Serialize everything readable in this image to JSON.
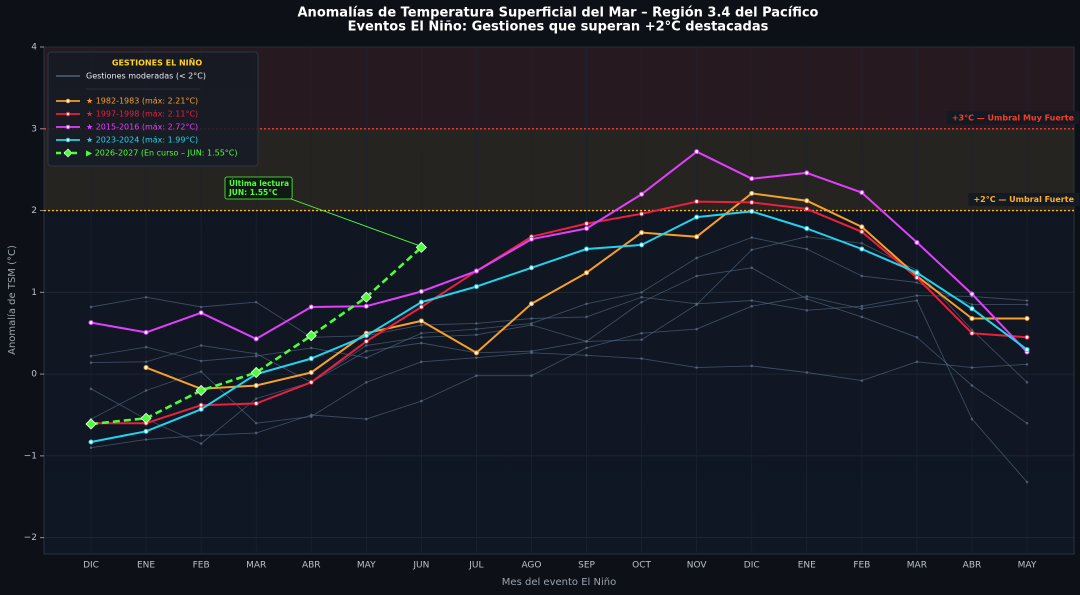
{
  "chart_data": {
    "type": "line",
    "title": "Anomalías de Temperatura Superficial del Mar – Región 3.4 del Pacífico",
    "subtitle": "Eventos El Niño: Gestiones que superan +2°C destacadas",
    "xlabel": "Mes del evento El Niño",
    "ylabel": "Anomalía de TSM (°C)",
    "legend_title": "GESTIONES EL NIÑO",
    "categories": [
      "DIC",
      "ENE",
      "FEB",
      "MAR",
      "ABR",
      "MAY",
      "JUN",
      "JUL",
      "AGO",
      "SEP",
      "OCT",
      "NOV",
      "DIC",
      "ENE",
      "FEB",
      "MAR",
      "ABR",
      "MAY"
    ],
    "ylim": [
      -2.2,
      4
    ],
    "yticks": [
      {
        "value": -2,
        "label": "−2"
      },
      {
        "value": -1,
        "label": "−1"
      },
      0,
      1,
      2,
      3,
      4
    ],
    "grid": true,
    "legend": "upper left",
    "thresholds": [
      {
        "value": 3,
        "label": "+3°C — Umbral Muy Fuerte",
        "color": "#ff3b1f"
      },
      {
        "value": 2,
        "label": "+2°C — Umbral Fuerte",
        "color": "#ffb020"
      }
    ],
    "moderate": {
      "name": "Gestiones moderadas (< 2°C)",
      "color": "#5a6f8a",
      "series": [
        [
          0.82,
          0.94,
          0.82,
          0.88,
          0.45,
          0.47,
          0.6,
          0.62,
          0.68,
          0.7,
          0.94,
          0.86,
          0.9,
          0.78,
          0.83,
          0.96,
          0.95,
          0.9
        ],
        [
          0.22,
          0.33,
          0.16,
          0.22,
          0.32,
          0.2,
          0.5,
          0.55,
          0.62,
          0.86,
          1.0,
          1.42,
          1.67,
          1.53,
          1.2,
          1.12,
          0.85,
          0.85
        ],
        [
          0.14,
          0.15,
          0.35,
          0.25,
          -0.1,
          0.28,
          0.38,
          0.26,
          0.28,
          0.4,
          0.88,
          1.2,
          1.3,
          0.92,
          0.7,
          0.45,
          -0.14,
          -0.6
        ],
        [
          -0.18,
          -0.55,
          -0.85,
          -0.3,
          -0.1,
          0.35,
          0.45,
          0.48,
          0.6,
          0.4,
          0.42,
          0.85,
          1.52,
          1.68,
          1.6,
          1.27,
          0.54,
          -0.1
        ],
        [
          -0.9,
          -0.8,
          -0.75,
          -0.72,
          -0.5,
          -0.55,
          -0.33,
          -0.02,
          -0.02,
          0.32,
          0.5,
          0.55,
          0.83,
          0.95,
          0.8,
          0.9,
          -0.55,
          -1.32
        ],
        [
          -0.55,
          -0.2,
          0.03,
          -0.6,
          -0.52,
          -0.1,
          0.15,
          0.2,
          0.26,
          0.23,
          0.19,
          0.08,
          0.1,
          0.02,
          -0.08,
          0.15,
          0.08,
          0.12
        ]
      ]
    },
    "series": [
      {
        "name": "★ 1982-1983  (máx: 2.21°C)",
        "color": "#f5a02a",
        "values": [
          null,
          0.08,
          -0.18,
          -0.14,
          0.02,
          0.5,
          0.65,
          0.26,
          0.86,
          1.24,
          1.73,
          1.68,
          2.21,
          2.12,
          1.8,
          1.2,
          0.68,
          0.68
        ]
      },
      {
        "name": "★ 1997-1998  (máx: 2.11°C)",
        "color": "#e8213f",
        "values": [
          -0.6,
          -0.6,
          -0.38,
          -0.36,
          -0.1,
          0.4,
          0.82,
          1.26,
          1.68,
          1.84,
          1.96,
          2.11,
          2.1,
          2.02,
          1.74,
          1.18,
          0.5,
          0.45
        ]
      },
      {
        "name": "★ 2015-2016  (máx: 2.72°C)",
        "color": "#e040fb",
        "values": [
          0.63,
          0.51,
          0.75,
          0.43,
          0.82,
          0.83,
          1.01,
          1.26,
          1.65,
          1.78,
          2.2,
          2.72,
          2.39,
          2.46,
          2.22,
          1.61,
          0.98,
          0.27
        ]
      },
      {
        "name": "★ 2023-2024  (máx: 1.99°C)",
        "color": "#22d3ee",
        "values": [
          -0.83,
          -0.7,
          -0.43,
          0.0,
          0.19,
          0.47,
          0.88,
          1.07,
          1.3,
          1.53,
          1.58,
          1.92,
          1.99,
          1.78,
          1.53,
          1.24,
          0.8,
          0.3
        ]
      },
      {
        "name": "▶ 2026-2027  (En curso – JUN: 1.55°C)",
        "color": "#4dff3a",
        "dashed": true,
        "values": [
          -0.61,
          -0.54,
          -0.2,
          0.02,
          0.47,
          0.94,
          1.55,
          null,
          null,
          null,
          null,
          null,
          null,
          null,
          null,
          null,
          null,
          null
        ]
      }
    ],
    "annotation": [
      "Última lectura",
      "JUN: 1.55°C"
    ]
  }
}
